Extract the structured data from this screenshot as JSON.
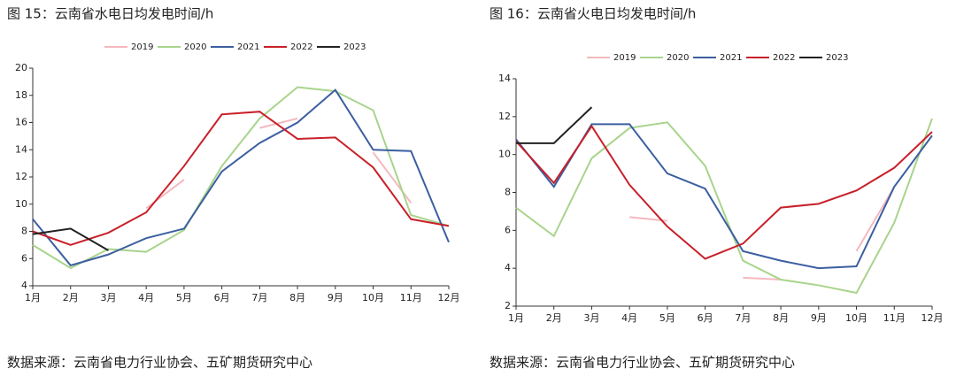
{
  "chart_data": [
    {
      "type": "line",
      "title": "图 15：云南省水电日均发电时间/h",
      "source": "数据来源：云南省电力行业协会、五矿期货研究中心",
      "categories": [
        "1月",
        "2月",
        "3月",
        "4月",
        "5月",
        "6月",
        "7月",
        "8月",
        "9月",
        "10月",
        "11月",
        "12月"
      ],
      "ylim": [
        4,
        20
      ],
      "yticks": [
        4,
        6,
        8,
        10,
        12,
        14,
        16,
        18,
        20
      ],
      "series": [
        {
          "name": "2019",
          "color": "#f4b8c0",
          "values": [
            null,
            null,
            null,
            9.7,
            11.8,
            null,
            15.6,
            16.3,
            null,
            13.8,
            10.1,
            null
          ]
        },
        {
          "name": "2020",
          "color": "#a8d48c",
          "values": [
            7.0,
            5.3,
            6.7,
            6.5,
            8.1,
            12.8,
            16.3,
            18.6,
            18.3,
            16.9,
            9.2,
            8.4
          ]
        },
        {
          "name": "2021",
          "color": "#3c5fa0",
          "values": [
            8.9,
            5.5,
            6.3,
            7.5,
            8.2,
            12.4,
            14.5,
            16.0,
            18.4,
            14.0,
            13.9,
            7.2
          ]
        },
        {
          "name": "2022",
          "color": "#c8202a",
          "values": [
            8.0,
            7.0,
            7.9,
            9.4,
            12.8,
            16.6,
            16.8,
            14.8,
            14.9,
            12.7,
            8.9,
            8.4
          ]
        },
        {
          "name": "2023",
          "color": "#222222",
          "values": [
            7.8,
            8.2,
            6.6,
            null,
            null,
            null,
            null,
            null,
            null,
            null,
            null,
            null
          ]
        }
      ]
    },
    {
      "type": "line",
      "title": "图 16：云南省火电日均发电时间/h",
      "source": "数据来源：云南省电力行业协会、五矿期货研究中心",
      "categories": [
        "1月",
        "2月",
        "3月",
        "4月",
        "5月",
        "6月",
        "7月",
        "8月",
        "9月",
        "10月",
        "11月",
        "12月"
      ],
      "ylim": [
        2,
        14
      ],
      "yticks": [
        2,
        4,
        6,
        8,
        10,
        12,
        14
      ],
      "series": [
        {
          "name": "2019",
          "color": "#f4b8c0",
          "values": [
            null,
            null,
            null,
            6.7,
            6.5,
            null,
            3.5,
            3.4,
            null,
            4.9,
            8.3,
            null
          ]
        },
        {
          "name": "2020",
          "color": "#a8d48c",
          "values": [
            7.2,
            5.7,
            9.8,
            11.4,
            11.7,
            9.4,
            4.4,
            3.4,
            3.1,
            2.7,
            6.4,
            11.9
          ]
        },
        {
          "name": "2021",
          "color": "#3c5fa0",
          "values": [
            10.8,
            8.3,
            11.6,
            11.6,
            9.0,
            8.2,
            4.9,
            4.4,
            4.0,
            4.1,
            8.3,
            11.0
          ]
        },
        {
          "name": "2022",
          "color": "#c8202a",
          "values": [
            10.7,
            8.5,
            11.5,
            8.4,
            6.2,
            4.5,
            5.3,
            7.2,
            7.4,
            8.1,
            9.3,
            11.2
          ]
        },
        {
          "name": "2023",
          "color": "#222222",
          "values": [
            10.6,
            10.6,
            12.5,
            null,
            null,
            null,
            null,
            null,
            null,
            null,
            null,
            null
          ]
        }
      ]
    }
  ]
}
